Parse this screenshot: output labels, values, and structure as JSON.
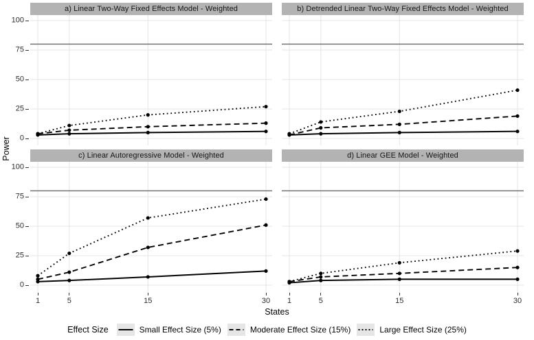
{
  "figure": {
    "y_axis_title": "Power",
    "x_axis_title": "States",
    "legend": {
      "title": "Effect Size",
      "items": [
        {
          "label": "Small Effect Size (5%)",
          "linetype": "solid"
        },
        {
          "label": "Moderate Effect Size (15%)",
          "linetype": "dashed"
        },
        {
          "label": "Large Effect Size (25%)",
          "linetype": "dotted"
        }
      ]
    }
  },
  "style": {
    "strip_bg": "#b3b3b3",
    "strip_text": "#141414",
    "gridline": "#e4e4e4",
    "ref_line": "#737373",
    "line_color": "#000000",
    "point_color": "#000000",
    "tick_color": "#333333",
    "tick_label_color": "#2b2b2b",
    "legend_key_bg": "#e6e6e6",
    "background": "#ffffff"
  },
  "chart_data": [
    {
      "type": "line",
      "title": "a) Linear Two-Way Fixed Effects Model - Weighted",
      "xlabel": "States",
      "ylabel": "Power",
      "x": [
        1,
        5,
        15,
        30
      ],
      "xticks": [
        1,
        5,
        15,
        30
      ],
      "yticks": [
        0,
        25,
        50,
        75,
        100
      ],
      "xlim": [
        1,
        30
      ],
      "ylim": [
        0,
        100
      ],
      "ref_line_y": 80,
      "grid": true,
      "series": [
        {
          "name": "Small Effect Size (5%)",
          "linetype": "solid",
          "values": [
            3,
            4,
            5,
            6
          ]
        },
        {
          "name": "Moderate Effect Size (15%)",
          "linetype": "dashed",
          "values": [
            4,
            7,
            10,
            13
          ]
        },
        {
          "name": "Large Effect Size (25%)",
          "linetype": "dotted",
          "values": [
            4,
            11,
            20,
            27
          ]
        }
      ]
    },
    {
      "type": "line",
      "title": "b) Detrended Linear Two-Way Fixed Effects Model - Weighted",
      "xlabel": "States",
      "ylabel": "Power",
      "x": [
        1,
        5,
        15,
        30
      ],
      "xticks": [
        1,
        5,
        15,
        30
      ],
      "yticks": [
        0,
        25,
        50,
        75,
        100
      ],
      "xlim": [
        1,
        30
      ],
      "ylim": [
        0,
        100
      ],
      "ref_line_y": 80,
      "grid": true,
      "series": [
        {
          "name": "Small Effect Size (5%)",
          "linetype": "solid",
          "values": [
            3,
            4,
            5,
            6
          ]
        },
        {
          "name": "Moderate Effect Size (15%)",
          "linetype": "dashed",
          "values": [
            3,
            9,
            12,
            19
          ]
        },
        {
          "name": "Large Effect Size (25%)",
          "linetype": "dotted",
          "values": [
            4,
            14,
            23,
            41
          ]
        }
      ]
    },
    {
      "type": "line",
      "title": "c) Linear Autoregressive Model - Weighted",
      "xlabel": "States",
      "ylabel": "Power",
      "x": [
        1,
        5,
        15,
        30
      ],
      "xticks": [
        1,
        5,
        15,
        30
      ],
      "yticks": [
        0,
        25,
        50,
        75,
        100
      ],
      "xlim": [
        1,
        30
      ],
      "ylim": [
        0,
        100
      ],
      "ref_line_y": 80,
      "grid": true,
      "series": [
        {
          "name": "Small Effect Size (5%)",
          "linetype": "solid",
          "values": [
            3,
            4,
            7,
            12
          ]
        },
        {
          "name": "Moderate Effect Size (15%)",
          "linetype": "dashed",
          "values": [
            5,
            11,
            32,
            51
          ]
        },
        {
          "name": "Large Effect Size (25%)",
          "linetype": "dotted",
          "values": [
            8,
            27,
            57,
            73
          ]
        }
      ]
    },
    {
      "type": "line",
      "title": "d) Linear GEE Model - Weighted",
      "xlabel": "States",
      "ylabel": "Power",
      "x": [
        1,
        5,
        15,
        30
      ],
      "xticks": [
        1,
        5,
        15,
        30
      ],
      "yticks": [
        0,
        25,
        50,
        75,
        100
      ],
      "xlim": [
        1,
        30
      ],
      "ylim": [
        0,
        100
      ],
      "ref_line_y": 80,
      "grid": true,
      "series": [
        {
          "name": "Small Effect Size (5%)",
          "linetype": "solid",
          "values": [
            2,
            4,
            5,
            5
          ]
        },
        {
          "name": "Moderate Effect Size (15%)",
          "linetype": "dashed",
          "values": [
            3,
            7,
            10,
            15
          ]
        },
        {
          "name": "Large Effect Size (25%)",
          "linetype": "dotted",
          "values": [
            3,
            10,
            19,
            29
          ]
        }
      ]
    }
  ]
}
